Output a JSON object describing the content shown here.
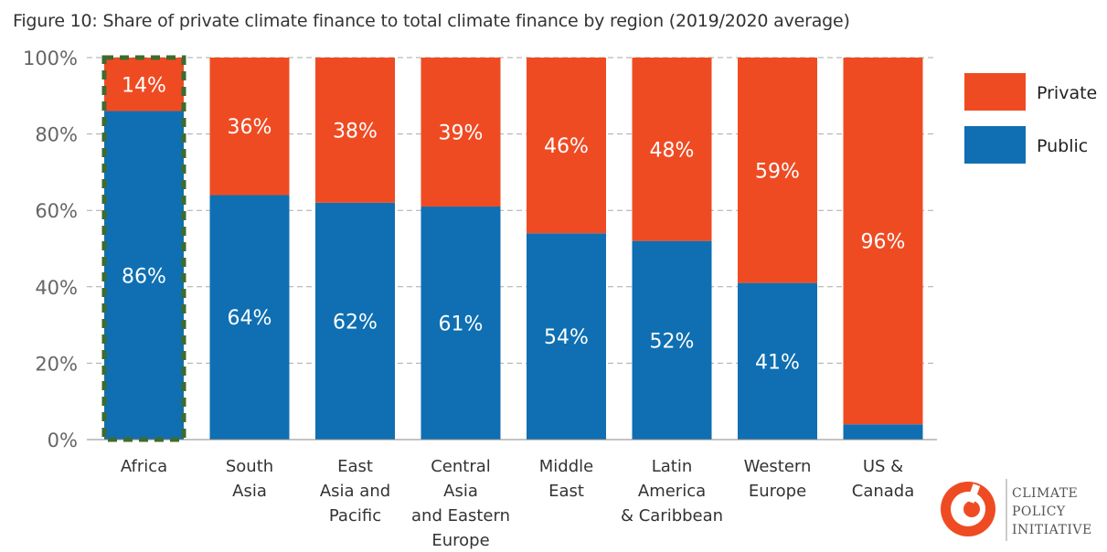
{
  "title": "Figure 10: Share of private climate finance to total climate finance by region (2019/2020 average)",
  "chart_data": {
    "type": "bar",
    "stacked": true,
    "categories": [
      [
        "Africa"
      ],
      [
        "South",
        "Asia"
      ],
      [
        "East",
        "Asia and",
        "Pacific"
      ],
      [
        "Central",
        "Asia",
        "and Eastern",
        "Europe"
      ],
      [
        "Middle",
        "East"
      ],
      [
        "Latin",
        "America",
        "& Caribbean"
      ],
      [
        "Western",
        "Europe"
      ],
      [
        "US &",
        "Canada"
      ]
    ],
    "series": [
      {
        "name": "Public",
        "color": "#0f6fb2",
        "values": [
          86,
          64,
          62,
          61,
          54,
          52,
          41,
          4
        ],
        "labels": [
          "86%",
          "64%",
          "62%",
          "61%",
          "54%",
          "52%",
          "41%",
          ""
        ]
      },
      {
        "name": "Private",
        "color": "#ef4b23",
        "values": [
          14,
          36,
          38,
          39,
          46,
          48,
          59,
          96
        ],
        "labels": [
          "14%",
          "36%",
          "38%",
          "39%",
          "46%",
          "48%",
          "59%",
          "96%"
        ]
      }
    ],
    "y_ticks": [
      "0%",
      "20%",
      "40%",
      "60%",
      "80%",
      "100%"
    ],
    "ylim": [
      0,
      100
    ],
    "grid": true,
    "legend_position": "right",
    "legend": [
      {
        "name": "Private",
        "color": "#ef4b23"
      },
      {
        "name": "Public",
        "color": "#0f6fb2"
      }
    ],
    "highlight": {
      "category": "Africa",
      "style": "dashed-outline",
      "color": "#3f6b2f"
    }
  },
  "logo": {
    "lines": [
      "CLIMATE",
      "POLICY",
      "INITIATIVE"
    ],
    "color": "#ef4b23"
  }
}
